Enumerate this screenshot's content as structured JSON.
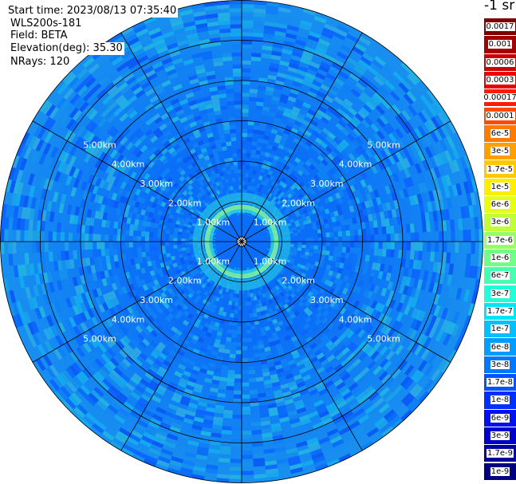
{
  "info": {
    "start_time": "Start time: 2023/08/13 07:35:40",
    "instrument": "WLS200s-181",
    "field": "Field: BETA",
    "elevation": "Elevation(deg): 35.30",
    "nrays": "NRays: 120"
  },
  "legend": {
    "title": "-1 sr",
    "entries": [
      {
        "label": "0.0017",
        "color": "#7f0000"
      },
      {
        "label": "0.001",
        "color": "#a50000"
      },
      {
        "label": "0.0006",
        "color": "#cc0000"
      },
      {
        "label": "0.0003",
        "color": "#ee0000"
      },
      {
        "label": "0.00017",
        "color": "#ff1a00"
      },
      {
        "label": "0.0001",
        "color": "#ff4a00"
      },
      {
        "label": "6e-5",
        "color": "#ff7a00"
      },
      {
        "label": "3e-5",
        "color": "#ffa000"
      },
      {
        "label": "1.7e-5",
        "color": "#ffc800"
      },
      {
        "label": "1e-5",
        "color": "#ffee00"
      },
      {
        "label": "6e-6",
        "color": "#e6ff10"
      },
      {
        "label": "3e-6",
        "color": "#c0ff37"
      },
      {
        "label": "1.7e-6",
        "color": "#97ff60"
      },
      {
        "label": "1e-6",
        "color": "#70ff87"
      },
      {
        "label": "6e-7",
        "color": "#47ffb0"
      },
      {
        "label": "3e-7",
        "color": "#20ffd7"
      },
      {
        "label": "1.7e-7",
        "color": "#00e4f8"
      },
      {
        "label": "1e-7",
        "color": "#00c0ff"
      },
      {
        "label": "6e-8",
        "color": "#009cff"
      },
      {
        "label": "3e-8",
        "color": "#0078ff"
      },
      {
        "label": "1.7e-8",
        "color": "#0054ff"
      },
      {
        "label": "1e-8",
        "color": "#0030ff"
      },
      {
        "label": "6e-9",
        "color": "#0010f0"
      },
      {
        "label": "3e-9",
        "color": "#0000cc"
      },
      {
        "label": "1.7e-9",
        "color": "#0000a0"
      },
      {
        "label": "1e-9",
        "color": "#000080"
      }
    ]
  },
  "chart_data": {
    "type": "heatmap",
    "projection": "polar PPI",
    "field": "BETA",
    "units": "sr-1",
    "color_scale": "log",
    "range_rings_km": [
      1,
      2,
      3,
      4,
      5
    ],
    "ring_labels": [
      "1.00km",
      "2.00km",
      "3.00km",
      "4.00km",
      "5.00km"
    ],
    "max_range_km": 6.0,
    "spokes_deg": [
      0,
      30,
      60,
      90,
      120,
      150,
      180,
      210,
      240,
      270,
      300,
      330
    ],
    "n_rays": 120,
    "background_level": "3e-8",
    "near_range_ring_km": 0.9,
    "near_range_ring_level": "3e-7"
  }
}
